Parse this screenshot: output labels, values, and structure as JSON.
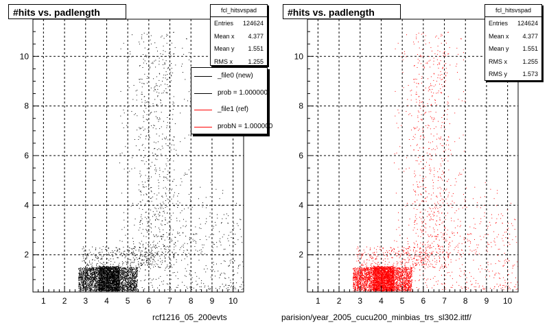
{
  "chart_data": [
    {
      "type": "scatter",
      "title": "#hits vs. padlength",
      "xlim": [
        0.5,
        10.5
      ],
      "ylim": [
        0.5,
        11.5
      ],
      "x_ticks": [
        1,
        2,
        3,
        4,
        5,
        6,
        7,
        8,
        9,
        10
      ],
      "y_ticks": [
        2,
        4,
        6,
        8,
        10
      ],
      "grid": true,
      "marker_color": "#000000",
      "stats": {
        "name": "fcl_hitsvspad",
        "rows": [
          {
            "label": "Entries",
            "value": "124624"
          },
          {
            "label": "Mean x",
            "value": "4.377"
          },
          {
            "label": "Mean y",
            "value": "1.551"
          },
          {
            "label": "RMS x",
            "value": "1.255"
          }
        ]
      },
      "legend": {
        "position": "top-right",
        "entries": [
          {
            "label": "_file0 (new)",
            "color": "#000000"
          },
          {
            "label": "prob = 1.000000",
            "color": "#000000"
          },
          {
            "label": "_file1 (ref)",
            "color": "#ff0000"
          },
          {
            "label": "probN = 1.000000",
            "color": "#ff0000"
          }
        ]
      },
      "footer": "rcf1216_05_200evts"
    },
    {
      "type": "scatter",
      "title": "#hits vs. padlength",
      "xlim": [
        0.5,
        10.5
      ],
      "ylim": [
        0.5,
        11.5
      ],
      "x_ticks": [
        1,
        2,
        3,
        4,
        5,
        6,
        7,
        8,
        9,
        10
      ],
      "y_ticks": [
        2,
        4,
        6,
        8,
        10
      ],
      "grid": true,
      "marker_color": "#ff0000",
      "stats": {
        "name": "fcl_hitsvspad",
        "rows": [
          {
            "label": "Entries",
            "value": "124624"
          },
          {
            "label": "Mean x",
            "value": "4.377"
          },
          {
            "label": "Mean y",
            "value": "1.551"
          },
          {
            "label": "RMS x",
            "value": "1.255"
          },
          {
            "label": "RMS y",
            "value": "1.573"
          }
        ]
      },
      "footer": "parision/year_2005_cucu200_minbias_trs_sl302.ittf/"
    }
  ]
}
